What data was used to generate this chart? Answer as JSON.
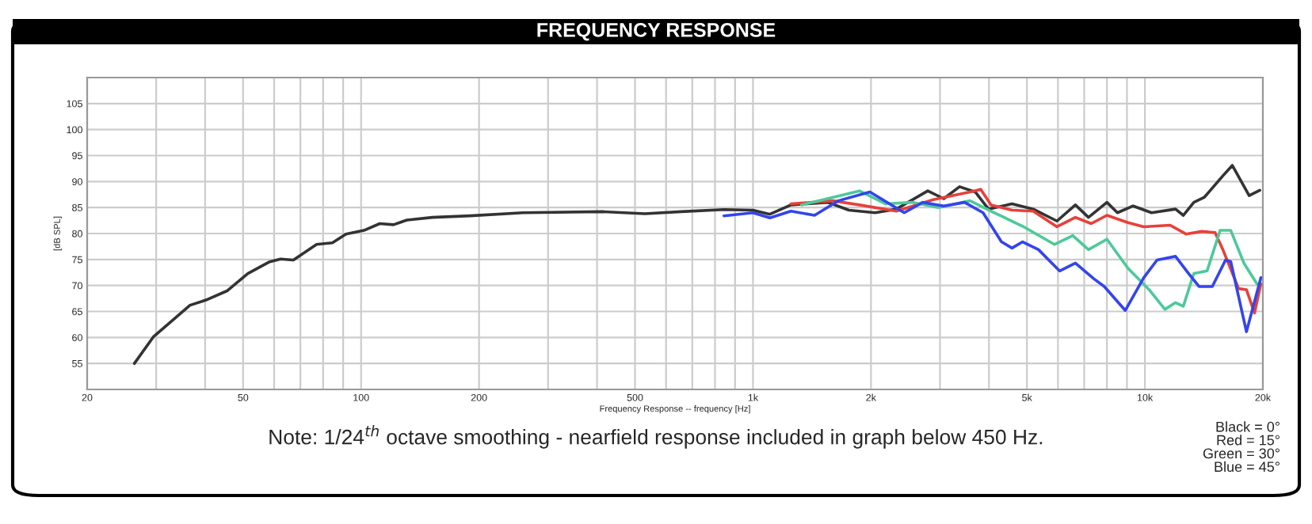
{
  "chart_data": {
    "type": "line",
    "title": "FREQUENCY RESPONSE",
    "xlabel": "Frequency Response -- frequency [Hz]",
    "ylabel": "[dB SPL]",
    "log": "x",
    "grid": true,
    "marker": "none",
    "line_style": "solid",
    "xlim": [
      20,
      20000
    ],
    "ylim": [
      50,
      110
    ],
    "xticks": [
      20,
      50,
      100,
      200,
      500,
      {
        "value": 1000,
        "label": "1k"
      },
      {
        "value": 2000,
        "label": "2k"
      },
      {
        "value": 5000,
        "label": "5k"
      },
      {
        "value": 10000,
        "label": "10k"
      },
      {
        "value": 20000,
        "label": "20k"
      }
    ],
    "yticks": [
      55,
      60,
      65,
      70,
      75,
      80,
      85,
      90,
      95,
      100,
      105
    ],
    "series": [
      {
        "color": "#333333",
        "x": [
          26.4,
          29.5,
          36.6,
          40.2,
          45.6,
          51.4,
          58.2,
          62.3,
          67.2,
          77,
          84.5,
          91.5,
          101.7,
          111.6,
          121,
          131,
          152,
          190,
          259,
          412,
          530,
          656,
          843,
          1000,
          1104,
          1250,
          1552,
          1757,
          2051,
          2321,
          2793,
          3067,
          3365,
          3690,
          3990,
          4581,
          5188,
          5965,
          6647,
          7178,
          8000,
          8511,
          9333,
          10400,
          11970,
          12530,
          13330,
          14190,
          15810,
          16710,
          18450,
          19640
        ],
        "values": [
          55,
          60.1,
          66.2,
          67.2,
          69.0,
          72.3,
          74.5,
          75.1,
          74.9,
          77.9,
          78.2,
          79.9,
          80.6,
          81.9,
          81.7,
          82.6,
          83.1,
          83.4,
          84.0,
          84.2,
          83.8,
          84.2,
          84.6,
          84.5,
          83.7,
          85.5,
          86.0,
          84.5,
          84.0,
          84.7,
          88.2,
          86.7,
          89.0,
          88.0,
          84.7,
          85.7,
          84.7,
          82.4,
          85.5,
          83.1,
          86.0,
          84.0,
          85.3,
          84.0,
          84.7,
          83.5,
          86.0,
          87.0,
          91.1,
          93.1,
          87.3,
          88.3
        ]
      },
      {
        "color": "#e8403a",
        "x": [
          1250,
          1600,
          1869,
          2321,
          2884,
          3581,
          3811,
          4050,
          4581,
          5188,
          5965,
          6647,
          7295,
          8000,
          9057,
          9931,
          11600,
          12730,
          13960,
          15100,
          15810,
          17340,
          18160,
          19040,
          19770
        ],
        "values": [
          85.7,
          86.3,
          85.5,
          84.3,
          86.5,
          88.0,
          88.5,
          85.5,
          84.5,
          84.3,
          81.3,
          83.1,
          81.9,
          83.5,
          82.1,
          81.3,
          81.6,
          79.9,
          80.4,
          80.2,
          76.9,
          69.4,
          69.2,
          64.7,
          70.3
        ]
      },
      {
        "color": "#4dc99a",
        "x": [
          1330,
          1869,
          2182,
          2547,
          2972,
          3581,
          4050,
          4875,
          5875,
          6546,
          7178,
          8000,
          9057,
          10250,
          11250,
          11970,
          12530,
          13330,
          14410,
          15560,
          16560,
          17890,
          19330
        ],
        "values": [
          85.5,
          88.2,
          85.7,
          86.0,
          85.0,
          86.3,
          84.3,
          81.4,
          77.9,
          79.6,
          76.9,
          78.9,
          73.3,
          69.2,
          65.4,
          66.7,
          66.0,
          72.3,
          72.8,
          80.6,
          80.6,
          74.3,
          70.3
        ]
      },
      {
        "color": "#3344ee",
        "x": [
          843,
          1000,
          1104,
          1250,
          1436,
          1651,
          1988,
          2431,
          2710,
          3067,
          3467,
          3864,
          4305,
          4581,
          4875,
          5352,
          6057,
          6647,
          7406,
          7879,
          8913,
          9931,
          10740,
          11970,
          12930,
          13740,
          14860,
          16060,
          16560,
          18160,
          19770
        ],
        "values": [
          83.4,
          84.0,
          83.0,
          84.3,
          83.5,
          86.3,
          88.0,
          84.0,
          86.0,
          85.3,
          86.0,
          84.0,
          78.4,
          77.2,
          78.4,
          76.9,
          72.8,
          74.3,
          71.3,
          69.8,
          65.2,
          71.5,
          74.9,
          75.6,
          72.3,
          69.8,
          69.8,
          74.9,
          74.6,
          61.1,
          71.5
        ]
      }
    ],
    "annotations": [
      "Note: 1/24$^{th}$ octave smoothing - nearfield response included in graph below 450 Hz.",
      "Black = 0°\nRed = 15°\nGreen = 30°\nBlue = 45°"
    ]
  }
}
